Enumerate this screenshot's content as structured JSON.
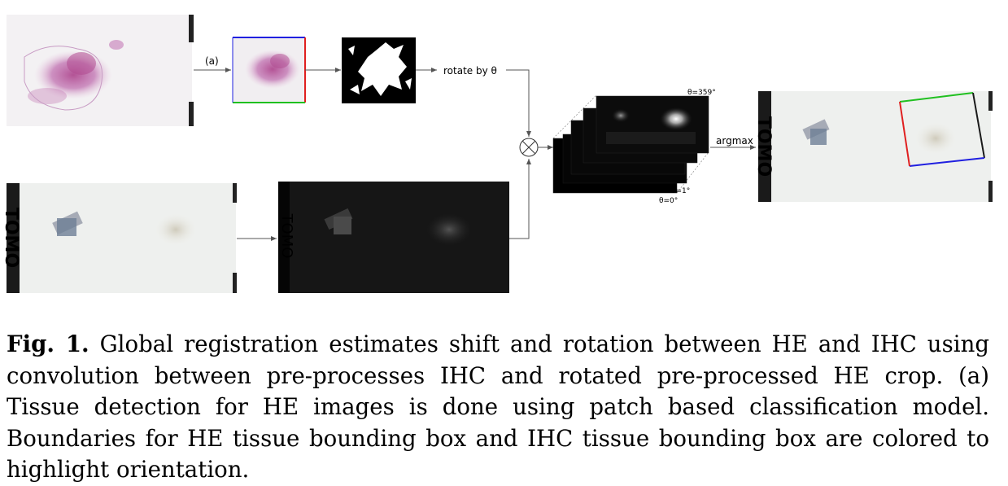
{
  "figure": {
    "step_label": "(a)",
    "rotate_label": "rotate by θ",
    "argmax_label": "argmax",
    "theta_labels": [
      "θ=359°",
      "θ=1°",
      "θ=0°"
    ],
    "slide_label_text": "TOMO",
    "colors": {
      "box_top": "#2020e0",
      "box_right": "#e02020",
      "box_bottom": "#20c020",
      "box_left": "#2020e0",
      "he_stain": "#c070b0",
      "he_stain_dark": "#b04a90",
      "slide_background": "#eef0ee",
      "ihc_tissue": "#d8d4c8"
    }
  },
  "caption": {
    "label": "Fig. 1.",
    "text": "Global registration estimates shift and rotation between HE and IHC using convolution between pre-processes IHC and rotated pre-processed HE crop. (a) Tissue detection for HE images is done using patch based classification model. Boundaries for HE tissue bounding box and IHC tissue bounding box are colored to highlight orientation."
  }
}
